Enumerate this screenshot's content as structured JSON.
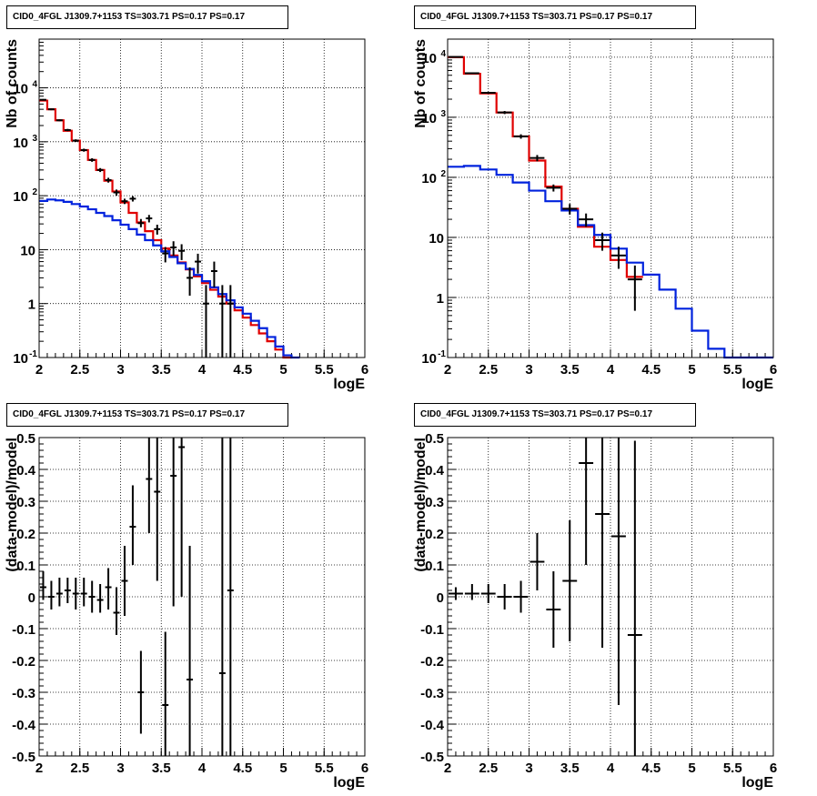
{
  "page": {
    "background": "#ffffff"
  },
  "colors": {
    "data": "#000000",
    "total_model": "#e00000",
    "component_model": "#0022dd",
    "grid": "#000000"
  },
  "chart_data": [
    {
      "type": "line",
      "title": "CID0_4FGL J1309.7+1153 TS=303.71 PS=0.17 PS=0.17",
      "xlabel": "logE",
      "ylabel": "Nb of counts",
      "xlim": [
        2,
        6
      ],
      "ylim": [
        0.1,
        80000
      ],
      "yscale": "log",
      "xticks": [
        "2",
        "2.5",
        "3",
        "3.5",
        "4",
        "4.5",
        "5",
        "5.5",
        "6"
      ],
      "yticks": [
        "10^{-1}",
        "1",
        "10",
        "10^{2}",
        "10^{3}",
        "10^{4}"
      ],
      "grid": true,
      "bin_width": 0.1,
      "series": [
        {
          "role": "total_model",
          "style": "step",
          "bins": [
            2.0,
            2.1,
            2.2,
            2.3,
            2.4,
            2.5,
            2.6,
            2.7,
            2.8,
            2.9,
            3.0,
            3.1,
            3.2,
            3.3,
            3.4,
            3.5,
            3.6,
            3.7,
            3.8,
            3.9,
            4.0,
            4.1,
            4.2,
            4.3,
            4.4,
            4.5,
            4.6,
            4.7,
            4.8,
            4.9,
            5.0
          ],
          "values": [
            5800,
            4000,
            2500,
            1600,
            1050,
            700,
            460,
            300,
            190,
            120,
            75,
            48,
            32,
            22,
            15,
            10.5,
            7.8,
            5.8,
            4.3,
            3.2,
            2.4,
            1.8,
            1.35,
            1.0,
            0.75,
            0.55,
            0.4,
            0.28,
            0.2,
            0.14,
            0.1
          ]
        },
        {
          "role": "component_model",
          "style": "step",
          "bins": [
            2.0,
            2.1,
            2.2,
            2.3,
            2.4,
            2.5,
            2.6,
            2.7,
            2.8,
            2.9,
            3.0,
            3.1,
            3.2,
            3.3,
            3.4,
            3.5,
            3.6,
            3.7,
            3.8,
            3.9,
            4.0,
            4.1,
            4.2,
            4.3,
            4.4,
            4.5,
            4.6,
            4.7,
            4.8,
            4.9,
            5.0,
            5.1
          ],
          "values": [
            80,
            85,
            82,
            77,
            70,
            63,
            56,
            48,
            42,
            35,
            29,
            24,
            19,
            15,
            12,
            9.3,
            7.3,
            5.6,
            4.4,
            3.4,
            2.6,
            2.0,
            1.5,
            1.15,
            0.85,
            0.65,
            0.48,
            0.35,
            0.24,
            0.16,
            0.11,
            0.1
          ]
        },
        {
          "role": "data",
          "style": "errorbar",
          "points": [
            {
              "x": 2.05,
              "y": 6000,
              "lo": 5800,
              "hi": 6200
            },
            {
              "x": 2.15,
              "y": 4000,
              "lo": 3850,
              "hi": 4150
            },
            {
              "x": 2.25,
              "y": 2500,
              "lo": 2400,
              "hi": 2600
            },
            {
              "x": 2.35,
              "y": 1650,
              "lo": 1570,
              "hi": 1730
            },
            {
              "x": 2.45,
              "y": 1050,
              "lo": 990,
              "hi": 1110
            },
            {
              "x": 2.55,
              "y": 700,
              "lo": 655,
              "hi": 745
            },
            {
              "x": 2.65,
              "y": 460,
              "lo": 425,
              "hi": 495
            },
            {
              "x": 2.75,
              "y": 300,
              "lo": 275,
              "hi": 325
            },
            {
              "x": 2.85,
              "y": 195,
              "lo": 175,
              "hi": 215
            },
            {
              "x": 2.95,
              "y": 115,
              "lo": 100,
              "hi": 130
            },
            {
              "x": 3.05,
              "y": 79,
              "lo": 70,
              "hi": 88
            },
            {
              "x": 3.15,
              "y": 88,
              "lo": 78,
              "hi": 98
            },
            {
              "x": 3.25,
              "y": 31,
              "lo": 26,
              "hi": 37
            },
            {
              "x": 3.35,
              "y": 38,
              "lo": 32,
              "hi": 44
            },
            {
              "x": 3.45,
              "y": 24,
              "lo": 19,
              "hi": 29
            },
            {
              "x": 3.55,
              "y": 8.5,
              "lo": 5.8,
              "hi": 11.2
            },
            {
              "x": 3.65,
              "y": 11,
              "lo": 7.7,
              "hi": 14.3
            },
            {
              "x": 3.75,
              "y": 9.5,
              "lo": 6.4,
              "hi": 12.6
            },
            {
              "x": 3.85,
              "y": 3,
              "lo": 1.4,
              "hi": 4.7
            },
            {
              "x": 3.95,
              "y": 6,
              "lo": 3.6,
              "hi": 8.4
            },
            {
              "x": 4.05,
              "y": 1,
              "lo": 0.1,
              "hi": 2.2
            },
            {
              "x": 4.15,
              "y": 4,
              "lo": 2.0,
              "hi": 6.0
            },
            {
              "x": 4.25,
              "y": 1,
              "lo": 0.1,
              "hi": 2.2
            },
            {
              "x": 4.35,
              "y": 1,
              "lo": 0.1,
              "hi": 2.2
            }
          ]
        }
      ]
    },
    {
      "type": "line",
      "title": "CID0_4FGL J1309.7+1153 TS=303.71 PS=0.17 PS=0.17",
      "xlabel": "logE",
      "ylabel": "Nb of counts",
      "xlim": [
        2,
        6
      ],
      "ylim": [
        0.1,
        20000
      ],
      "yscale": "log",
      "xticks": [
        "2",
        "2.5",
        "3",
        "3.5",
        "4",
        "4.5",
        "5",
        "5.5",
        "6"
      ],
      "yticks": [
        "10^{-1}",
        "1",
        "10",
        "10^{2}",
        "10^{3}",
        "10^{4}"
      ],
      "grid": true,
      "bin_width": 0.2,
      "series": [
        {
          "role": "total_model",
          "style": "step",
          "bins": [
            2.0,
            2.2,
            2.4,
            2.6,
            2.8,
            3.0,
            3.2,
            3.4,
            3.6,
            3.8,
            4.0,
            4.2
          ],
          "values": [
            10000,
            5300,
            2500,
            1200,
            480,
            190,
            70,
            30,
            15,
            7,
            4.2,
            2.2
          ]
        },
        {
          "role": "component_model",
          "style": "step",
          "bins": [
            2.0,
            2.2,
            2.4,
            2.6,
            2.8,
            3.0,
            3.2,
            3.4,
            3.6,
            3.8,
            4.0,
            4.2,
            4.4,
            4.6,
            4.8,
            5.0,
            5.2,
            5.4,
            5.6,
            5.8
          ],
          "values": [
            150,
            155,
            135,
            110,
            82,
            60,
            40,
            28,
            16,
            11,
            6.5,
            3.8,
            2.4,
            1.35,
            0.65,
            0.28,
            0.14,
            0.1,
            0.1,
            0.1
          ]
        },
        {
          "role": "data",
          "style": "errorbar",
          "points": [
            {
              "x": 2.1,
              "y": 10100,
              "lo": 9900,
              "hi": 10300
            },
            {
              "x": 2.3,
              "y": 5400,
              "lo": 5250,
              "hi": 5550
            },
            {
              "x": 2.5,
              "y": 2550,
              "lo": 2450,
              "hi": 2650
            },
            {
              "x": 2.7,
              "y": 1200,
              "lo": 1130,
              "hi": 1270
            },
            {
              "x": 2.9,
              "y": 480,
              "lo": 440,
              "hi": 520
            },
            {
              "x": 3.1,
              "y": 210,
              "lo": 185,
              "hi": 235
            },
            {
              "x": 3.3,
              "y": 67,
              "lo": 58,
              "hi": 76
            },
            {
              "x": 3.5,
              "y": 30,
              "lo": 24,
              "hi": 36
            },
            {
              "x": 3.7,
              "y": 20,
              "lo": 15,
              "hi": 25
            },
            {
              "x": 3.9,
              "y": 9,
              "lo": 6,
              "hi": 12
            },
            {
              "x": 4.1,
              "y": 5,
              "lo": 3,
              "hi": 7
            },
            {
              "x": 4.3,
              "y": 2,
              "lo": 0.6,
              "hi": 3.4
            }
          ]
        }
      ]
    },
    {
      "type": "scatter",
      "title": "CID0_4FGL J1309.7+1153 TS=303.71 PS=0.17 PS=0.17",
      "xlabel": "logE",
      "ylabel": "(data-model)/model",
      "xlim": [
        2,
        6
      ],
      "ylim": [
        -0.5,
        0.5
      ],
      "xticks": [
        "2",
        "2.5",
        "3",
        "3.5",
        "4",
        "4.5",
        "5",
        "5.5",
        "6"
      ],
      "yticks": [
        "-0.5",
        "-0.4",
        "-0.3",
        "-0.2",
        "-0.1",
        "0",
        "0.1",
        "0.2",
        "0.3",
        "0.4",
        "0.5"
      ],
      "grid": true,
      "bin_width": 0.1,
      "series": [
        {
          "role": "data",
          "style": "errorbar",
          "points": [
            {
              "x": 2.05,
              "y": 0.03,
              "lo": -0.01,
              "hi": 0.08
            },
            {
              "x": 2.15,
              "y": 0.0,
              "lo": -0.04,
              "hi": 0.05
            },
            {
              "x": 2.25,
              "y": 0.01,
              "lo": -0.03,
              "hi": 0.06
            },
            {
              "x": 2.35,
              "y": 0.02,
              "lo": -0.02,
              "hi": 0.06
            },
            {
              "x": 2.45,
              "y": 0.01,
              "lo": -0.04,
              "hi": 0.06
            },
            {
              "x": 2.55,
              "y": 0.01,
              "lo": -0.03,
              "hi": 0.06
            },
            {
              "x": 2.65,
              "y": 0.0,
              "lo": -0.05,
              "hi": 0.05
            },
            {
              "x": 2.75,
              "y": -0.01,
              "lo": -0.05,
              "hi": 0.04
            },
            {
              "x": 2.85,
              "y": 0.03,
              "lo": -0.04,
              "hi": 0.09
            },
            {
              "x": 2.95,
              "y": -0.05,
              "lo": -0.12,
              "hi": 0.03
            },
            {
              "x": 3.05,
              "y": 0.05,
              "lo": -0.06,
              "hi": 0.16
            },
            {
              "x": 3.15,
              "y": 0.22,
              "lo": 0.1,
              "hi": 0.35
            },
            {
              "x": 3.25,
              "y": -0.3,
              "lo": -0.43,
              "hi": -0.17
            },
            {
              "x": 3.35,
              "y": 0.37,
              "lo": 0.2,
              "hi": 0.5
            },
            {
              "x": 3.45,
              "y": 0.33,
              "lo": 0.05,
              "hi": 0.5
            },
            {
              "x": 3.55,
              "y": -0.34,
              "lo": -0.5,
              "hi": -0.11
            },
            {
              "x": 3.65,
              "y": 0.38,
              "lo": -0.03,
              "hi": 0.5
            },
            {
              "x": 3.75,
              "y": 0.47,
              "lo": 0.0,
              "hi": 0.5
            },
            {
              "x": 3.85,
              "y": -0.26,
              "lo": -0.5,
              "hi": 0.16
            },
            {
              "x": 4.25,
              "y": -0.24,
              "lo": -0.5,
              "hi": 0.5
            },
            {
              "x": 4.35,
              "y": 0.02,
              "lo": -0.5,
              "hi": 0.5
            }
          ]
        }
      ]
    },
    {
      "type": "scatter",
      "title": "CID0_4FGL J1309.7+1153 TS=303.71 PS=0.17 PS=0.17",
      "xlabel": "logE",
      "ylabel": "(data-model)/model",
      "xlim": [
        2,
        6
      ],
      "ylim": [
        -0.5,
        0.5
      ],
      "xticks": [
        "2",
        "2.5",
        "3",
        "3.5",
        "4",
        "4.5",
        "5",
        "5.5",
        "6"
      ],
      "yticks": [
        "-0.5",
        "-0.4",
        "-0.3",
        "-0.2",
        "-0.1",
        "0",
        "0.1",
        "0.2",
        "0.3",
        "0.4",
        "0.5"
      ],
      "grid": true,
      "bin_width": 0.2,
      "series": [
        {
          "role": "data",
          "style": "errorbar",
          "points": [
            {
              "x": 2.1,
              "y": 0.01,
              "lo": -0.01,
              "hi": 0.03
            },
            {
              "x": 2.3,
              "y": 0.01,
              "lo": -0.01,
              "hi": 0.04
            },
            {
              "x": 2.5,
              "y": 0.01,
              "lo": -0.02,
              "hi": 0.04
            },
            {
              "x": 2.7,
              "y": 0.0,
              "lo": -0.04,
              "hi": 0.04
            },
            {
              "x": 2.9,
              "y": 0.0,
              "lo": -0.05,
              "hi": 0.05
            },
            {
              "x": 3.1,
              "y": 0.11,
              "lo": 0.02,
              "hi": 0.2
            },
            {
              "x": 3.3,
              "y": -0.04,
              "lo": -0.16,
              "hi": 0.08
            },
            {
              "x": 3.5,
              "y": 0.05,
              "lo": -0.14,
              "hi": 0.24
            },
            {
              "x": 3.7,
              "y": 0.42,
              "lo": 0.1,
              "hi": 0.5
            },
            {
              "x": 3.9,
              "y": 0.26,
              "lo": -0.16,
              "hi": 0.5
            },
            {
              "x": 4.1,
              "y": 0.19,
              "lo": -0.34,
              "hi": 0.5
            },
            {
              "x": 4.3,
              "y": -0.12,
              "lo": -0.5,
              "hi": 0.49
            }
          ]
        }
      ]
    }
  ]
}
